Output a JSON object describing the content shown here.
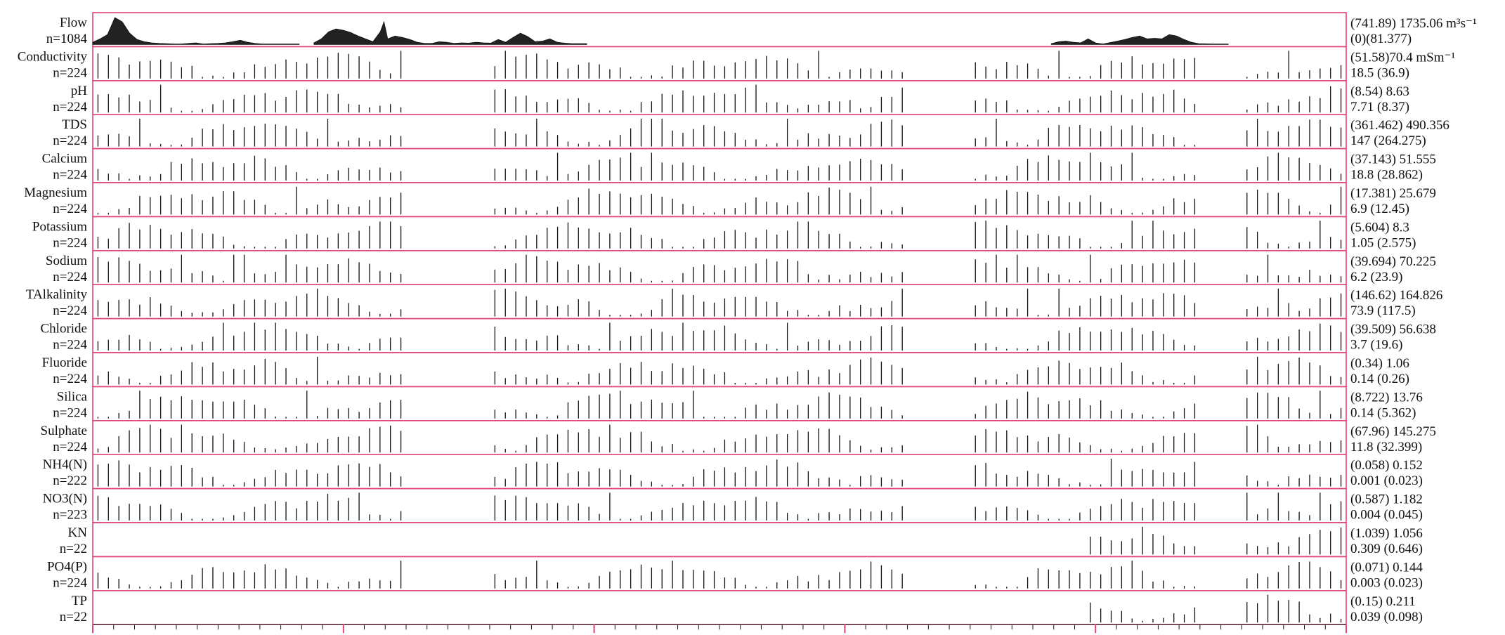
{
  "chart_data": {
    "type": "bar",
    "layout": "stacked-strip-chart",
    "title": "",
    "xlabel": "",
    "ylabel": "",
    "grid": false,
    "legend": "none",
    "panel_border_color": "#e0457b",
    "bar_color": "#111111",
    "axis_tick_color": "#e0457b",
    "x_positions": 120,
    "data_gaps": [
      [
        30,
        38
      ],
      [
        78,
        84
      ],
      [
        106,
        110
      ]
    ],
    "panels": [
      {
        "name": "Flow",
        "count_label": "n=1084",
        "type": "area",
        "stats_top": "(741.89) 1735.06 m³s⁻¹",
        "stats_bottom": "(0)(81.377)",
        "segments": [
          [
            0,
            8
          ],
          [
            2,
            20
          ],
          [
            4,
            35
          ],
          [
            6,
            95
          ],
          [
            8,
            80
          ],
          [
            10,
            40
          ],
          [
            12,
            18
          ],
          [
            14,
            10
          ],
          [
            16,
            6
          ],
          [
            18,
            4
          ],
          [
            20,
            3
          ],
          [
            22,
            2
          ],
          [
            24,
            2
          ],
          [
            26,
            4
          ],
          [
            28,
            6
          ],
          [
            30,
            2
          ],
          [
            32,
            3
          ],
          [
            34,
            4
          ],
          [
            36,
            6
          ],
          [
            38,
            10
          ],
          [
            40,
            15
          ],
          [
            42,
            8
          ],
          [
            44,
            4
          ],
          [
            46,
            2
          ],
          [
            48,
            2
          ],
          [
            50,
            2
          ],
          [
            52,
            2
          ],
          [
            54,
            2
          ],
          [
            56,
            2
          ]
        ],
        "segments2": [
          [
            60,
            6
          ],
          [
            62,
            20
          ],
          [
            64,
            45
          ],
          [
            66,
            55
          ],
          [
            68,
            50
          ],
          [
            70,
            42
          ],
          [
            72,
            30
          ],
          [
            74,
            20
          ],
          [
            76,
            10
          ],
          [
            78,
            45
          ],
          [
            79,
            80
          ],
          [
            80,
            20
          ],
          [
            82,
            30
          ],
          [
            84,
            25
          ],
          [
            86,
            18
          ],
          [
            88,
            8
          ],
          [
            90,
            4
          ],
          [
            92,
            4
          ],
          [
            94,
            10
          ],
          [
            96,
            8
          ],
          [
            98,
            4
          ],
          [
            100,
            6
          ],
          [
            102,
            5
          ],
          [
            104,
            8
          ],
          [
            106,
            6
          ],
          [
            108,
            5
          ],
          [
            110,
            18
          ],
          [
            112,
            8
          ],
          [
            114,
            25
          ],
          [
            116,
            40
          ],
          [
            118,
            28
          ],
          [
            120,
            10
          ],
          [
            122,
            12
          ],
          [
            124,
            20
          ],
          [
            126,
            8
          ],
          [
            128,
            5
          ],
          [
            130,
            3
          ],
          [
            132,
            3
          ],
          [
            134,
            3
          ]
        ],
        "segments3": [
          [
            260,
            3
          ],
          [
            262,
            10
          ],
          [
            264,
            12
          ],
          [
            266,
            8
          ],
          [
            268,
            6
          ],
          [
            270,
            20
          ],
          [
            272,
            6
          ],
          [
            274,
            2
          ],
          [
            278,
            12
          ],
          [
            280,
            18
          ],
          [
            282,
            25
          ],
          [
            284,
            30
          ],
          [
            286,
            20
          ],
          [
            288,
            22
          ],
          [
            290,
            20
          ],
          [
            292,
            35
          ],
          [
            294,
            30
          ],
          [
            296,
            18
          ],
          [
            298,
            8
          ],
          [
            300,
            3
          ],
          [
            304,
            2
          ],
          [
            308,
            2
          ]
        ]
      },
      {
        "name": "Conductivity",
        "count_label": "n=224",
        "stats_top": "(51.58)70.4 mSm⁻¹",
        "stats_bottom": "18.5 (36.9)"
      },
      {
        "name": "pH",
        "count_label": "n=224",
        "stats_top": "(8.54) 8.63",
        "stats_bottom": "7.71 (8.37)"
      },
      {
        "name": "TDS",
        "count_label": "n=224",
        "stats_top": "(361.462) 490.356",
        "stats_bottom": "147 (264.275)"
      },
      {
        "name": "Calcium",
        "count_label": "n=224",
        "stats_top": "(37.143) 51.555",
        "stats_bottom": "18.8 (28.862)"
      },
      {
        "name": "Magnesium",
        "count_label": "n=224",
        "stats_top": "(17.381) 25.679",
        "stats_bottom": "6.9 (12.45)"
      },
      {
        "name": "Potassium",
        "count_label": "n=224",
        "stats_top": "(5.604) 8.3",
        "stats_bottom": "1.05 (2.575)"
      },
      {
        "name": "Sodium",
        "count_label": "n=224",
        "stats_top": "(39.694) 70.225",
        "stats_bottom": "6.2 (23.9)"
      },
      {
        "name": "TAlkalinity",
        "count_label": "n=224",
        "stats_top": "(146.62) 164.826",
        "stats_bottom": "73.9 (117.5)"
      },
      {
        "name": "Chloride",
        "count_label": "n=224",
        "stats_top": "(39.509) 56.638",
        "stats_bottom": "3.7 (19.6)"
      },
      {
        "name": "Fluoride",
        "count_label": "n=224",
        "stats_top": "(0.34) 1.06",
        "stats_bottom": "0.14 (0.26)"
      },
      {
        "name": "Silica",
        "count_label": "n=224",
        "stats_top": "(8.722) 13.76",
        "stats_bottom": "0.14 (5.362)"
      },
      {
        "name": "Sulphate",
        "count_label": "n=224",
        "stats_top": "(67.96) 145.275",
        "stats_bottom": "11.8 (32.399)"
      },
      {
        "name": "NH4(N)",
        "count_label": "n=222",
        "stats_top": "(0.058) 0.152",
        "stats_bottom": "0.001 (0.023)"
      },
      {
        "name": "NO3(N)",
        "count_label": "n=223",
        "stats_top": "(0.587) 1.182",
        "stats_bottom": "0.004 (0.045)"
      },
      {
        "name": "KN",
        "count_label": "n=22",
        "stats_top": "(1.039) 1.056",
        "stats_bottom": "0.309 (0.646)"
      },
      {
        "name": "PO4(P)",
        "count_label": "n=224",
        "stats_top": "(0.071) 0.144",
        "stats_bottom": "0.003 (0.023)"
      },
      {
        "name": "TP",
        "count_label": "n=22",
        "stats_top": "(0.15) 0.211",
        "stats_bottom": "0.039 (0.098)"
      }
    ]
  }
}
